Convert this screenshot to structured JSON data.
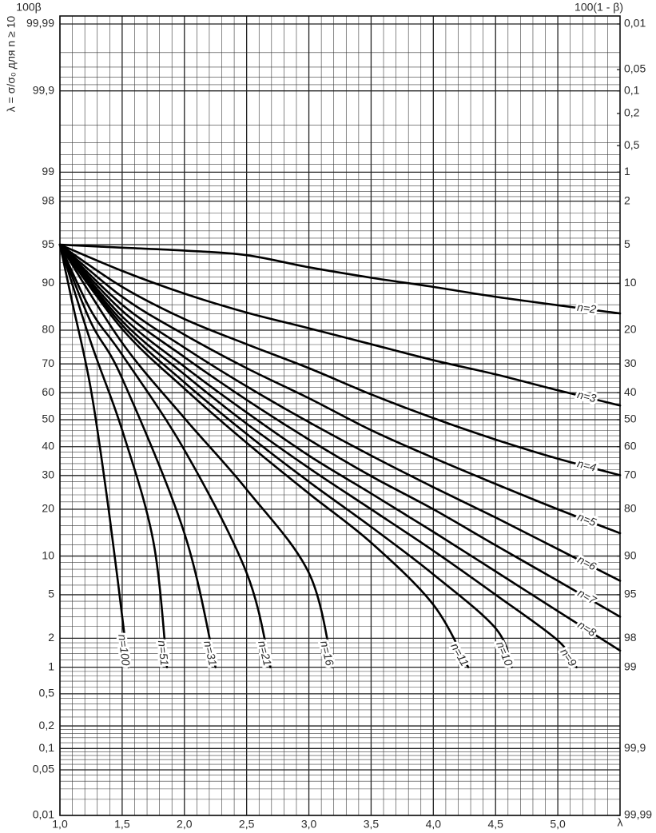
{
  "chart_data": {
    "type": "line",
    "y_left_label": "100β",
    "y_right_label": "100(1 - β)",
    "x_label": "λ",
    "y_title": "λ = σ/σ₀ для n ≥ 10",
    "yscale": "probability",
    "grid": true,
    "xlim": [
      1,
      5.5
    ],
    "xticks": [
      {
        "value": 1,
        "label": "1,0"
      },
      {
        "value": 1.5,
        "label": "1,5"
      },
      {
        "value": 2,
        "label": "2,0"
      },
      {
        "value": 2.5,
        "label": "2,5"
      },
      {
        "value": 3,
        "label": "3,0"
      },
      {
        "value": 3.5,
        "label": "3,5"
      },
      {
        "value": 4,
        "label": "4,0"
      },
      {
        "value": 4.5,
        "label": "4,5"
      },
      {
        "value": 5,
        "label": "5,0"
      }
    ],
    "ylim": [
      0.01,
      99.99
    ],
    "yticks": [
      {
        "value": 0.01,
        "label": "0,01"
      },
      {
        "value": 0.05,
        "label": "0,05"
      },
      {
        "value": 0.1,
        "label": "0,1"
      },
      {
        "value": 0.2,
        "label": "0,2"
      },
      {
        "value": 0.5,
        "label": "0,5"
      },
      1,
      2,
      5,
      10,
      20,
      30,
      40,
      50,
      60,
      70,
      80,
      90,
      95,
      98,
      99,
      {
        "value": 99.9,
        "label": "99,9"
      },
      {
        "value": 99.99,
        "label": "99,99"
      }
    ],
    "y2lim": [
      99.99,
      0.01
    ],
    "y2ticks": [
      {
        "value": 0.01,
        "label": "0,01"
      },
      {
        "value": 0.05,
        "label": "0,05"
      },
      {
        "value": 0.1,
        "label": "0,1"
      },
      {
        "value": 0.2,
        "label": "0,2"
      },
      {
        "value": 0.5,
        "label": "0,5"
      },
      1,
      2,
      5,
      10,
      20,
      30,
      40,
      50,
      60,
      70,
      80,
      90,
      95,
      98,
      99,
      {
        "value": 99.9,
        "label": "99,9"
      },
      {
        "value": 99.99,
        "label": "99,99"
      }
    ],
    "series": [
      {
        "name": "n=2",
        "color": "#000000",
        "x": [
          1,
          1.5,
          2,
          2.5,
          3,
          3.5,
          4,
          4.5,
          5,
          5.5
        ],
        "values": [
          95,
          94.7,
          94.4,
          93.9,
          92.4,
          90.9,
          89.4,
          87.6,
          85.9,
          84.1
        ]
      },
      {
        "name": "n=3",
        "color": "#000000",
        "x": [
          1,
          1.5,
          2,
          2.5,
          3,
          3.5,
          4,
          4.5,
          5,
          5.5
        ],
        "values": [
          95,
          91.9,
          88.2,
          84.3,
          80.5,
          76.1,
          71.2,
          66.5,
          60.9,
          55.3
        ]
      },
      {
        "name": "n=4",
        "color": "#000000",
        "x": [
          1,
          1.5,
          2,
          2.5,
          3,
          3.5,
          4,
          4.5,
          5,
          5.5
        ],
        "values": [
          95,
          89.4,
          82.8,
          76.1,
          68.6,
          59.4,
          50.6,
          42.6,
          35.7,
          30.1
        ]
      },
      {
        "name": "n=5",
        "color": "#000000",
        "x": [
          1,
          1.5,
          2,
          2.5,
          3,
          3.5,
          4,
          4.5,
          5,
          5.5
        ],
        "values": [
          95,
          87.6,
          78.8,
          68.6,
          58,
          46.1,
          36,
          27.3,
          20,
          14.3
        ]
      },
      {
        "name": "n=6",
        "color": "#000000",
        "x": [
          1,
          1.5,
          2,
          2.5,
          3,
          3.5,
          4,
          4.5,
          5,
          5.5
        ],
        "values": [
          95,
          86,
          75.1,
          62.3,
          49.1,
          36.8,
          26.3,
          17.9,
          11.2,
          6.5
        ]
      },
      {
        "name": "n=7",
        "color": "#000000",
        "x": [
          1,
          1.5,
          2,
          2.5,
          3,
          3.5,
          4,
          4.5,
          5,
          5.5
        ],
        "values": [
          95,
          84.7,
          72.2,
          57.4,
          42.6,
          29.8,
          20,
          11.9,
          6.5,
          3.2
        ]
      },
      {
        "name": "n=8",
        "color": "#000000",
        "x": [
          1,
          1.5,
          2,
          2.5,
          3,
          3.5,
          4,
          4.5,
          5,
          5.5
        ],
        "values": [
          95,
          83.4,
          69.1,
          52.7,
          36.8,
          24.4,
          14.6,
          7.7,
          3.6,
          1.5
        ]
      },
      {
        "name": "n=9",
        "color": "#000000",
        "x": [
          1,
          1.5,
          2,
          2.5,
          3,
          3.5,
          4,
          4.5,
          5,
          5.15
        ],
        "values": [
          95,
          82.3,
          66.5,
          48.5,
          32.5,
          20,
          10.9,
          5,
          1.9,
          1
        ]
      },
      {
        "name": "n=10",
        "color": "#000000",
        "x": [
          1,
          1.5,
          2,
          2.5,
          3,
          3.5,
          4,
          4.5,
          4.63
        ],
        "values": [
          95,
          81.3,
          63.7,
          44.7,
          28,
          15.7,
          7.3,
          2.5,
          1
        ]
      },
      {
        "name": "n=11",
        "color": "#000000",
        "x": [
          1,
          1.5,
          2,
          2.5,
          3,
          3.5,
          4,
          4.28
        ],
        "values": [
          95,
          80.3,
          61.5,
          41.4,
          24.4,
          12.4,
          4.1,
          1
        ]
      },
      {
        "name": "n=16",
        "color": "#000000",
        "x": [
          1,
          1.5,
          2,
          2.5,
          3,
          3.19
        ],
        "values": [
          95,
          76.5,
          50.6,
          25.6,
          7.5,
          1
        ]
      },
      {
        "name": "n=21",
        "color": "#000000",
        "x": [
          1,
          1.25,
          1.5,
          2,
          2.5,
          2.69
        ],
        "values": [
          95,
          84.7,
          72.9,
          38.8,
          7.5,
          1
        ]
      },
      {
        "name": "n=31",
        "color": "#000000",
        "x": [
          1,
          1.25,
          1.5,
          2,
          2.25
        ],
        "values": [
          95,
          81.9,
          65.1,
          14.3,
          1
        ]
      },
      {
        "name": "n=51",
        "color": "#000000",
        "x": [
          1,
          1.25,
          1.5,
          1.75,
          1.86
        ],
        "values": [
          95,
          76.5,
          46.1,
          12.7,
          1
        ]
      },
      {
        "name": "n=100",
        "color": "#000000",
        "x": [
          1,
          1.1,
          1.25,
          1.4,
          1.55
        ],
        "values": [
          95,
          86.4,
          60.9,
          17.9,
          1
        ]
      }
    ]
  }
}
